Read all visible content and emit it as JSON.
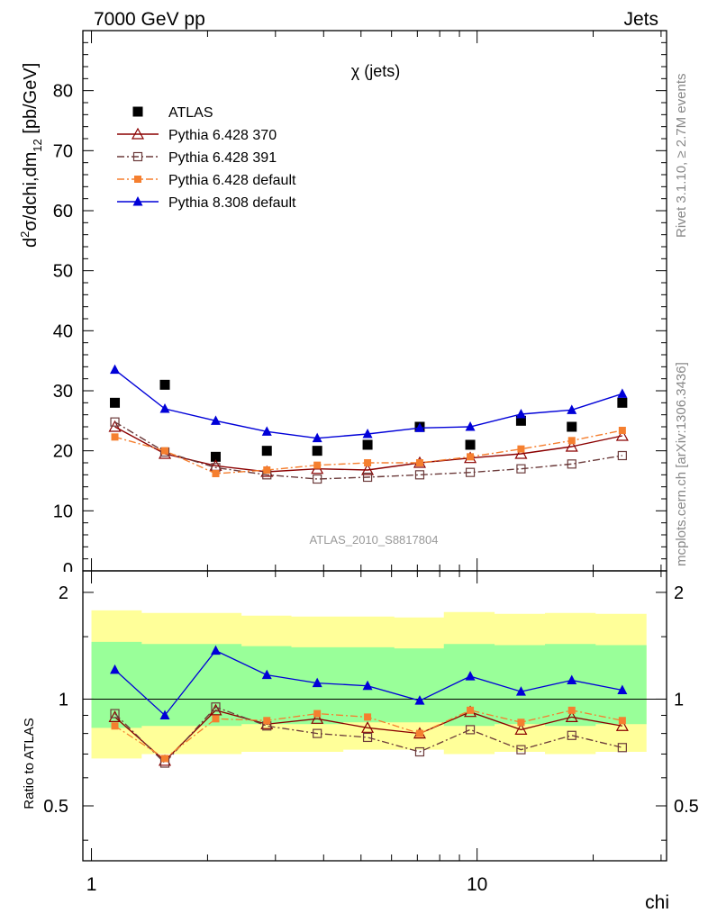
{
  "header": {
    "left": "7000 GeV pp",
    "right": "Jets"
  },
  "side_labels": {
    "rivet": "Rivet 3.1.10, ≥ 2.7M events",
    "mcplots": "mcplots.cern.ch [arXiv:1306.3436]"
  },
  "colors": {
    "atlas": "#000000",
    "p6_370": "#8b0000",
    "p6_391": "#6b3a3a",
    "p6_default": "#f57f2f",
    "p8_default": "#0000d8",
    "band_outer": "#ffff99",
    "band_inner": "#99ff99"
  },
  "chart_data": [
    {
      "type": "scatter",
      "title": "χ (jets)",
      "ylabel_parts": {
        "d": "d",
        "sup": "2",
        "mid": "σ/dchi,dm",
        "sub": "12",
        "unit": " [pb/GeV]"
      },
      "watermark": "ATLAS_2010_S8817804",
      "x_scale": "log",
      "xlim": [
        0.95,
        31
      ],
      "ylim": [
        0,
        90
      ],
      "y_ticks": [
        10,
        20,
        30,
        40,
        50,
        60,
        70,
        80
      ],
      "y_tick_labels": [
        "10",
        "20",
        "30",
        "40",
        "50",
        "60",
        "70",
        "80"
      ],
      "y_zero_label": "0",
      "x": [
        1.15,
        1.55,
        2.1,
        2.85,
        3.85,
        5.2,
        7.1,
        9.6,
        13.0,
        17.6,
        23.8
      ],
      "legend": {
        "position": "upper-left"
      },
      "series": [
        {
          "name": "ATLAS",
          "key": "atlas",
          "marker": "square-filled",
          "values": [
            28,
            31,
            19,
            20,
            20,
            21,
            24,
            21,
            25,
            24,
            28
          ]
        },
        {
          "name": "Pythia 6.428 370",
          "key": "p6_370",
          "marker": "triangle-open",
          "line": "solid",
          "values": [
            24,
            19.5,
            17.5,
            16.5,
            17,
            16.8,
            18,
            18.8,
            19.5,
            20.7,
            22.5
          ]
        },
        {
          "name": "Pythia 6.428 391",
          "key": "p6_391",
          "marker": "square-open",
          "line": "dashdot",
          "values": [
            24.8,
            19.8,
            17.2,
            16,
            15.3,
            15.6,
            16,
            16.4,
            17,
            17.8,
            19.2
          ]
        },
        {
          "name": "Pythia 6.428 default",
          "key": "p6_default",
          "marker": "square-filled-small",
          "line": "dashdot",
          "values": [
            22.3,
            20,
            16.2,
            16.8,
            17.6,
            18,
            18,
            19,
            20.3,
            21.7,
            23.4
          ]
        },
        {
          "name": "Pythia 8.308 default",
          "key": "p8_default",
          "marker": "triangle-filled",
          "line": "solid",
          "values": [
            33.5,
            27,
            25,
            23.2,
            22.1,
            22.8,
            23.8,
            24,
            26.1,
            26.8,
            29.5
          ]
        }
      ]
    },
    {
      "type": "scatter",
      "ylabel": "Ratio to ATLAS",
      "xlabel": "chi",
      "x_scale": "log",
      "xlim": [
        0.95,
        31
      ],
      "ylim": [
        0.35,
        2.3
      ],
      "y_ticks": [
        0.5,
        1,
        2
      ],
      "y_tick_labels": [
        "0.5",
        "1",
        "2"
      ],
      "x_ticks": [
        1,
        10
      ],
      "x_tick_labels": [
        "1",
        "10"
      ],
      "x_bins": [
        1.0,
        1.35,
        1.8,
        2.45,
        3.3,
        4.5,
        6.1,
        8.2,
        11.1,
        15.0,
        20.3,
        27.5
      ],
      "band_outer_low": [
        0.68,
        0.7,
        0.7,
        0.71,
        0.71,
        0.72,
        0.72,
        0.7,
        0.71,
        0.7,
        0.71
      ],
      "band_outer_high": [
        1.78,
        1.75,
        1.75,
        1.72,
        1.71,
        1.71,
        1.7,
        1.76,
        1.74,
        1.75,
        1.74
      ],
      "band_inner_low": [
        0.83,
        0.84,
        0.84,
        0.85,
        0.85,
        0.86,
        0.86,
        0.84,
        0.85,
        0.84,
        0.85
      ],
      "band_inner_high": [
        1.45,
        1.43,
        1.43,
        1.41,
        1.4,
        1.4,
        1.39,
        1.43,
        1.42,
        1.43,
        1.42
      ],
      "series": [
        {
          "name": "Pythia 6.428 370",
          "key": "p6_370",
          "values": [
            0.89,
            0.67,
            0.93,
            0.85,
            0.88,
            0.83,
            0.8,
            0.92,
            0.82,
            0.89,
            0.84
          ]
        },
        {
          "name": "Pythia 6.428 391",
          "key": "p6_391",
          "values": [
            0.91,
            0.66,
            0.95,
            0.84,
            0.8,
            0.78,
            0.71,
            0.82,
            0.72,
            0.79,
            0.73
          ]
        },
        {
          "name": "Pythia 6.428 default",
          "key": "p6_default",
          "values": [
            0.84,
            0.68,
            0.88,
            0.87,
            0.91,
            0.89,
            0.8,
            0.93,
            0.86,
            0.93,
            0.87
          ]
        },
        {
          "name": "Pythia 8.308 default",
          "key": "p8_default",
          "values": [
            1.21,
            0.9,
            1.37,
            1.17,
            1.11,
            1.09,
            0.99,
            1.16,
            1.05,
            1.13,
            1.06
          ]
        }
      ]
    }
  ]
}
